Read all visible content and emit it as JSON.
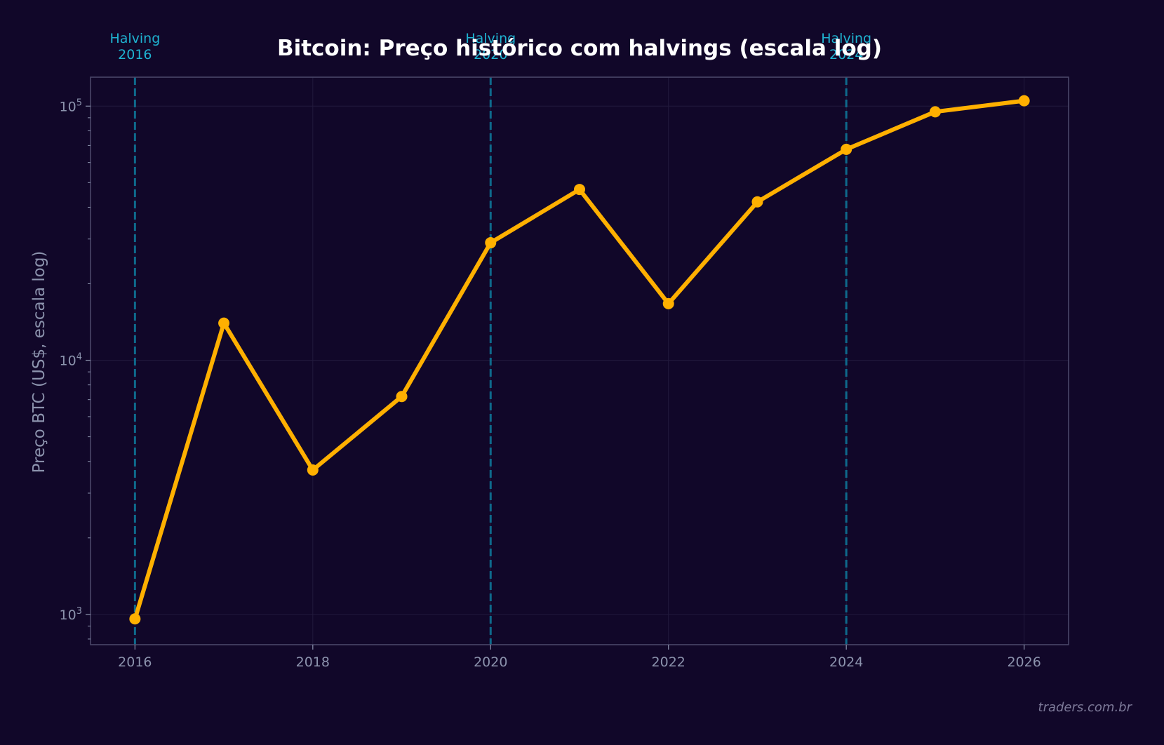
{
  "chart_data": {
    "type": "line",
    "title": "Bitcoin: Preço histórico com halvings (escala log)",
    "xlabel": "",
    "ylabel": "Preço BTC (US$, escala log)",
    "yscale": "log",
    "xlim": [
      2015.5,
      2026.5
    ],
    "ylim": [
      760,
      130000
    ],
    "x_ticks": [
      "2016",
      "2018",
      "2020",
      "2022",
      "2024",
      "2026"
    ],
    "y_ticks": [
      {
        "value": 1000,
        "base": "10",
        "exp": "3"
      },
      {
        "value": 10000,
        "base": "10",
        "exp": "4"
      },
      {
        "value": 100000,
        "base": "10",
        "exp": "5"
      }
    ],
    "grid": true,
    "series": [
      {
        "name": "Preço BTC",
        "color": "#ffb000",
        "x": [
          2016,
          2017,
          2018,
          2019,
          2020,
          2021,
          2022,
          2023,
          2024,
          2025,
          2026
        ],
        "values": [
          960,
          14000,
          3700,
          7200,
          29000,
          47000,
          16700,
          42000,
          67600,
          95000,
          105000
        ]
      }
    ],
    "annotations": [
      {
        "x": 2016,
        "line1": "Halving",
        "line2": "2016",
        "style": "dashed-vertical",
        "color": "#0e6a8c",
        "label_color": "#1fb3d1"
      },
      {
        "x": 2020,
        "line1": "Halving",
        "line2": "2020",
        "style": "dashed-vertical",
        "color": "#0e6a8c",
        "label_color": "#1fb3d1"
      },
      {
        "x": 2024,
        "line1": "Halving",
        "line2": "2024",
        "style": "dashed-vertical",
        "color": "#0e6a8c",
        "label_color": "#1fb3d1"
      }
    ],
    "watermark": "traders.com.br"
  },
  "colors": {
    "background": "#110729",
    "frame": "#4a4668",
    "grid": "#221a3d",
    "line": "#ffb000",
    "halving_line": "#0e6a8c",
    "halving_label": "#1fb3d1",
    "tick_text": "#8c93ad",
    "title": "#ffffff"
  }
}
